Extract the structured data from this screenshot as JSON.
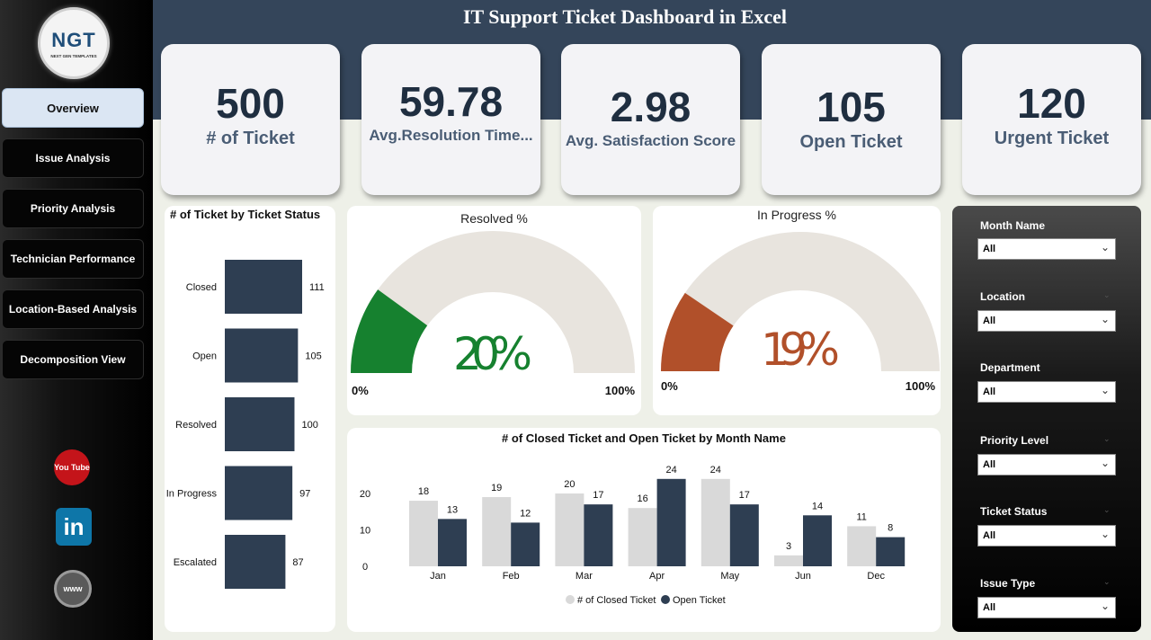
{
  "logo": {
    "text": "NGT",
    "subtitle": "NEXT GEN TEMPLATES"
  },
  "nav": [
    {
      "label": "Overview",
      "active": true
    },
    {
      "label": "Issue Analysis"
    },
    {
      "label": "Priority Analysis"
    },
    {
      "label": "Technician Performance"
    },
    {
      "label": "Location-Based Analysis"
    },
    {
      "label": "Decomposition View"
    }
  ],
  "social": {
    "youtube": "You Tube",
    "linkedin": "in",
    "web": "www"
  },
  "header": {
    "title": "IT Support Ticket Dashboard in Excel"
  },
  "kpis": [
    {
      "value": "500",
      "label": "# of Ticket"
    },
    {
      "value": "59.78",
      "label": "Avg.Resolution Time..."
    },
    {
      "value": "2.98",
      "label": "Avg. Satisfaction Score"
    },
    {
      "value": "105",
      "label": "Open Ticket"
    },
    {
      "value": "120",
      "label": "Urgent Ticket"
    }
  ],
  "colors": {
    "navy": "#2e3e52",
    "lightgray": "#d9d9d9",
    "green": "#16812f",
    "orange": "#b1502a",
    "gauge_bg": "#e8e4de"
  },
  "chart_data": [
    {
      "type": "bar",
      "orientation": "horizontal",
      "title": "# of Ticket by Ticket Status",
      "categories": [
        "Closed",
        "Open",
        "Resolved",
        "In Progress",
        "Escalated"
      ],
      "values": [
        111,
        105,
        100,
        97,
        87
      ]
    },
    {
      "type": "gauge",
      "title": "Resolved %",
      "value": 20,
      "display": "20%",
      "min_label": "0%",
      "max_label": "100%"
    },
    {
      "type": "gauge",
      "title": "In Progress %",
      "value": 19,
      "display": "19%",
      "min_label": "0%",
      "max_label": "100%"
    },
    {
      "type": "bar",
      "title": "# of Closed Ticket and Open Ticket by Month Name",
      "categories": [
        "Jan",
        "Feb",
        "Mar",
        "Apr",
        "May",
        "Jun",
        "Dec"
      ],
      "series": [
        {
          "name": "# of Closed Ticket",
          "values": [
            18,
            19,
            20,
            16,
            24,
            3,
            11
          ]
        },
        {
          "name": "Open Ticket",
          "values": [
            13,
            12,
            17,
            24,
            17,
            14,
            8
          ]
        }
      ],
      "yticks": [
        "0",
        "10",
        "20"
      ],
      "ylim": [
        0,
        24
      ],
      "legend": "bottom"
    }
  ],
  "slicers": [
    {
      "label": "Month Name",
      "value": "All"
    },
    {
      "label": "Location",
      "value": "All"
    },
    {
      "label": "Department",
      "value": "All"
    },
    {
      "label": "Priority Level",
      "value": "All"
    },
    {
      "label": "Ticket Status",
      "value": "All"
    },
    {
      "label": "Issue Type",
      "value": "All"
    }
  ]
}
